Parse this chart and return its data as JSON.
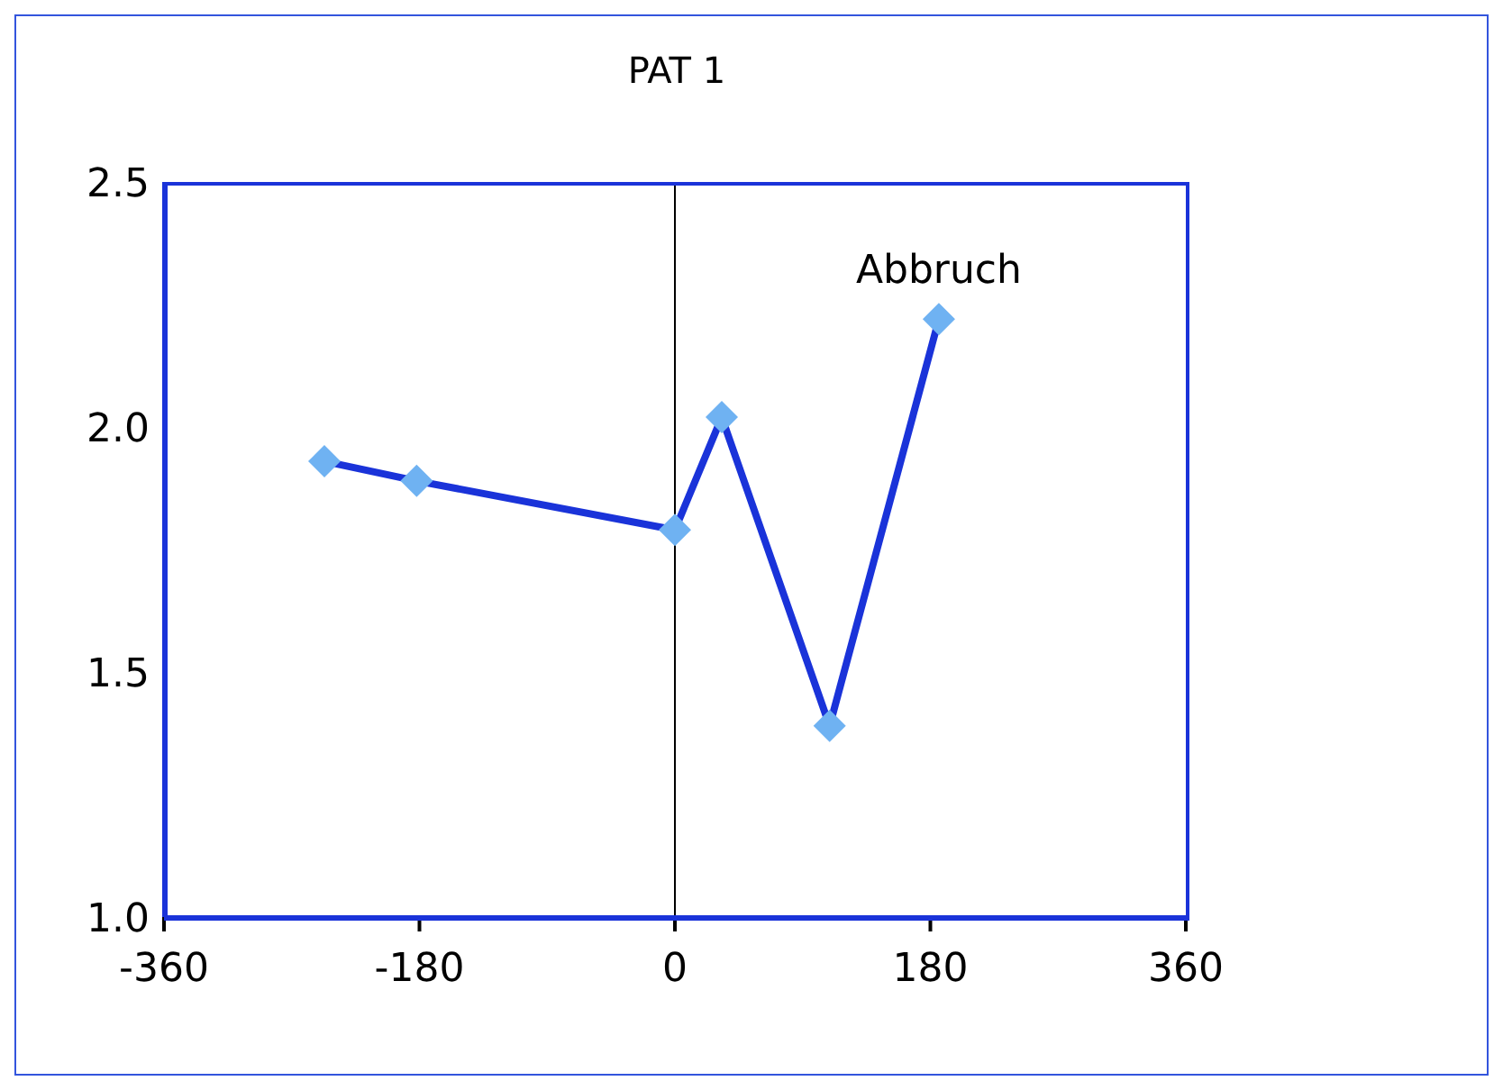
{
  "chart_data": {
    "type": "line",
    "title": "PAT 1",
    "x": [
      -247,
      -182,
      0,
      33,
      109,
      186
    ],
    "series": [
      {
        "color": "#1a33d9",
        "values": [
          1.93,
          1.89,
          1.79,
          2.02,
          1.39,
          2.22
        ]
      }
    ],
    "xlim": [
      -360,
      360
    ],
    "xticks": [
      -360,
      -180,
      0,
      180,
      360
    ],
    "ylim": [
      1.0,
      2.5
    ],
    "yticks": [
      {
        "value": 1.0,
        "label": "1.0"
      },
      {
        "value": 1.5,
        "label": "1.5"
      },
      {
        "value": 2.0,
        "label": "2.0"
      },
      {
        "value": 2.5,
        "label": "2.5"
      }
    ],
    "ref_lines": [
      {
        "axis": "x",
        "value": 0,
        "color": "#000000"
      }
    ],
    "annotations": [
      {
        "text": "Abbruch",
        "x": 186,
        "y": 2.22
      }
    ],
    "marker": "diamond",
    "line_style": "solid",
    "grid": false,
    "legend": false
  }
}
